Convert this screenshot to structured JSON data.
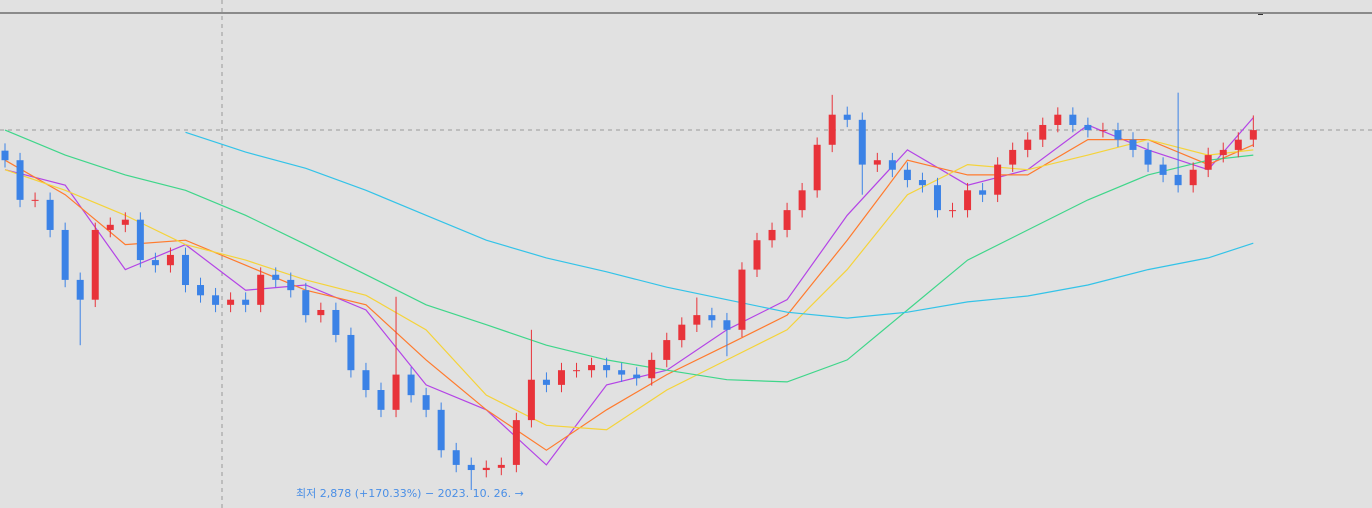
{
  "chart_data": {
    "type": "candlestick",
    "annotation": "최저 2,878 (+170.33%) − 2023. 10. 26. →",
    "ylim": [
      2633,
      9552
    ],
    "up_color": "#e8333a",
    "down_color": "#3b82e6",
    "open": [
      7500,
      7370,
      6830,
      6830,
      6420,
      5740,
      5470,
      6420,
      6490,
      6560,
      6010,
      5940,
      6080,
      5670,
      5530,
      5400,
      5470,
      5400,
      5810,
      5740,
      5600,
      5260,
      5330,
      4990,
      4510,
      4240,
      3970,
      4450,
      4170,
      3970,
      3420,
      3220,
      3150,
      3180,
      3220,
      3830,
      4380,
      4310,
      4510,
      4510,
      4580,
      4510,
      4450,
      4400,
      4650,
      4920,
      5130,
      5260,
      5190,
      5060,
      5880,
      6280,
      6420,
      6690,
      6960,
      7580,
      7990,
      7920,
      7310,
      7370,
      7240,
      7100,
      7030,
      6690,
      6690,
      6960,
      6900,
      7310,
      7510,
      7650,
      7850,
      7990,
      7850,
      7780,
      7780,
      7650,
      7510,
      7310,
      7170,
      7030,
      7240,
      7440,
      7510,
      7650
    ],
    "high": [
      7600,
      7470,
      6930,
      6930,
      6520,
      5840,
      6520,
      6590,
      6660,
      6660,
      6110,
      6180,
      6180,
      5770,
      5630,
      5570,
      5570,
      5910,
      5910,
      5840,
      5700,
      5430,
      5430,
      5090,
      4610,
      4340,
      5510,
      4550,
      4270,
      4070,
      3520,
      3320,
      3280,
      3320,
      3930,
      5060,
      4480,
      4610,
      4610,
      4680,
      4680,
      4610,
      4550,
      4750,
      5020,
      5230,
      5500,
      5360,
      5290,
      5980,
      6380,
      6520,
      6790,
      7060,
      7680,
      8260,
      8100,
      8020,
      7470,
      7470,
      7340,
      7200,
      7130,
      6790,
      7060,
      7060,
      7410,
      7610,
      7750,
      7950,
      8090,
      8090,
      7950,
      7880,
      7880,
      7750,
      7610,
      7410,
      8290,
      7340,
      7540,
      7610,
      7750,
      7980
    ],
    "low": [
      7270,
      6730,
      6730,
      6320,
      5640,
      4850,
      5370,
      6320,
      6390,
      5910,
      5840,
      5840,
      5570,
      5430,
      5300,
      5300,
      5300,
      5300,
      5640,
      5500,
      5160,
      5160,
      4890,
      4410,
      4140,
      3870,
      3870,
      4070,
      3870,
      3320,
      3120,
      2878,
      3050,
      3080,
      3120,
      3730,
      4210,
      4210,
      4410,
      4410,
      4410,
      4350,
      4300,
      4300,
      4550,
      4820,
      5030,
      5090,
      4700,
      4960,
      5780,
      6180,
      6320,
      6590,
      6860,
      7480,
      7820,
      6900,
      7210,
      7140,
      7000,
      6930,
      6590,
      6590,
      6590,
      6800,
      6800,
      7210,
      7410,
      7550,
      7750,
      7750,
      7680,
      7680,
      7550,
      7410,
      7210,
      7070,
      6930,
      6930,
      7140,
      7340,
      7410,
      7550
    ],
    "close": [
      7370,
      6830,
      6830,
      6420,
      5740,
      5470,
      6420,
      6490,
      6560,
      6010,
      5940,
      6080,
      5670,
      5530,
      5400,
      5470,
      5400,
      5810,
      5740,
      5600,
      5260,
      5330,
      4990,
      4510,
      4240,
      3970,
      4450,
      4170,
      3970,
      3420,
      3220,
      3150,
      3180,
      3220,
      3830,
      4380,
      4310,
      4510,
      4510,
      4580,
      4510,
      4450,
      4400,
      4650,
      4920,
      5130,
      5260,
      5190,
      5060,
      5880,
      6280,
      6420,
      6690,
      6960,
      7580,
      7990,
      7920,
      7310,
      7370,
      7240,
      7100,
      7030,
      6690,
      6690,
      6960,
      6900,
      7310,
      7510,
      7650,
      7850,
      7990,
      7850,
      7780,
      7780,
      7650,
      7510,
      7310,
      7170,
      7030,
      7240,
      7440,
      7510,
      7650,
      7780
    ],
    "ma_x": [
      0,
      4,
      8,
      12,
      16,
      20,
      24,
      28,
      32,
      36,
      40,
      44,
      48,
      52,
      56,
      60,
      64,
      68,
      72,
      76,
      80,
      83
    ],
    "series": [
      {
        "color": "#b444e6",
        "values": [
          7240,
          7030,
          5880,
          6220,
          5600,
          5670,
          5330,
          4310,
          3970,
          3220,
          4310,
          4510,
          5060,
          5470,
          6620,
          7510,
          7030,
          7240,
          7850,
          7510,
          7240,
          7950
        ]
      },
      {
        "color": "#ff7b2e",
        "values": [
          7370,
          6900,
          6220,
          6280,
          5940,
          5600,
          5400,
          4650,
          3970,
          3420,
          3970,
          4450,
          4850,
          5260,
          6280,
          7370,
          7170,
          7170,
          7650,
          7650,
          7310,
          7580
        ]
      },
      {
        "color": "#f5d33a",
        "values": [
          7240,
          6960,
          6620,
          6220,
          6010,
          5740,
          5530,
          5060,
          4170,
          3760,
          3700,
          4240,
          4650,
          5060,
          5880,
          6900,
          7310,
          7240,
          7440,
          7650,
          7440,
          7510
        ]
      },
      {
        "color": "#3fd68a",
        "values": [
          7780,
          7440,
          7170,
          6960,
          6620,
          6220,
          5810,
          5400,
          5130,
          4850,
          4650,
          4510,
          4380,
          4350,
          4650,
          5330,
          6010,
          6420,
          6830,
          7170,
          7370,
          7440
        ]
      },
      {
        "color": "#33c3e8",
        "values": [
          null,
          null,
          null,
          7750,
          7480,
          7260,
          6960,
          6620,
          6280,
          6040,
          5850,
          5640,
          5470,
          5300,
          5220,
          5300,
          5440,
          5520,
          5670,
          5880,
          6040,
          6240
        ]
      }
    ]
  }
}
